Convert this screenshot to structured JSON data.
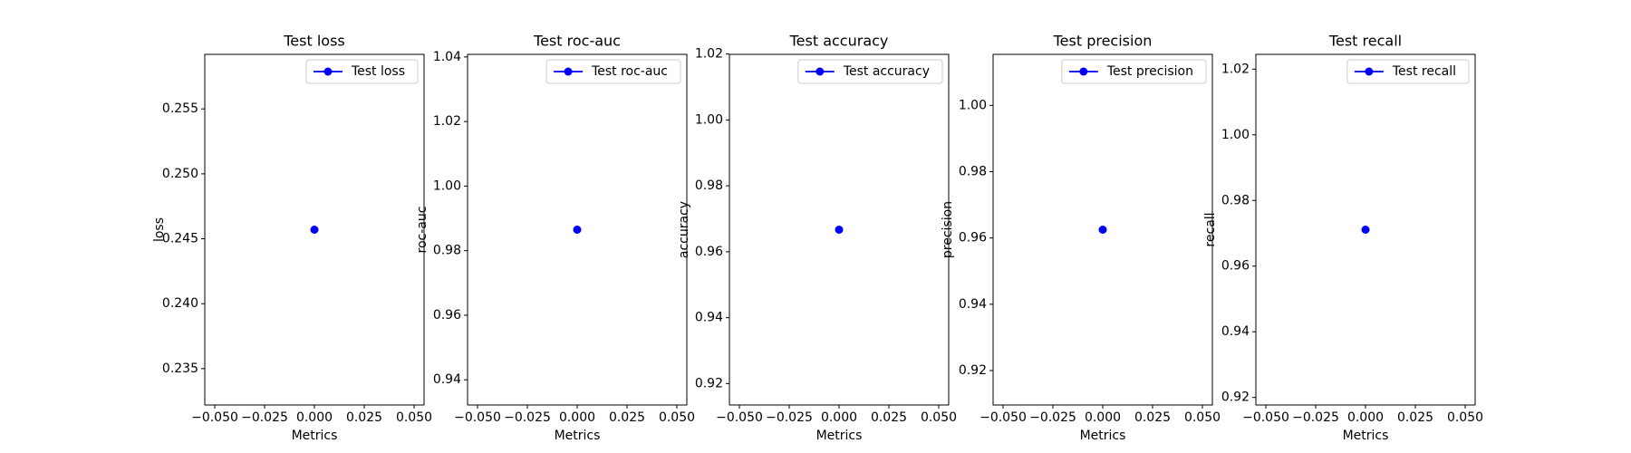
{
  "chart_data": [
    {
      "type": "line",
      "title": "Test loss",
      "xlabel": "Metrics",
      "ylabel": "loss",
      "x": [
        0
      ],
      "series": [
        {
          "name": "Test loss",
          "color": "#0000ff",
          "values": [
            0.2457
          ]
        }
      ],
      "xlim": [
        -0.055,
        0.055
      ],
      "xticks": [
        {
          "value": -0.05,
          "label": "−0.050"
        },
        {
          "value": -0.025,
          "label": "−0.025"
        },
        {
          "value": 0,
          "label": "0.000"
        },
        {
          "value": 0.025,
          "label": "0.025"
        },
        {
          "value": 0.05,
          "label": "0.050"
        }
      ],
      "ylim": [
        0.2322,
        0.2592
      ],
      "yticks": [
        0.235,
        {
          "value": 0.24,
          "label": "0.240"
        },
        0.245,
        {
          "value": 0.25,
          "label": "0.250"
        },
        0.255
      ],
      "legend": "upper right"
    },
    {
      "type": "line",
      "title": "Test roc-auc",
      "xlabel": "Metrics",
      "ylabel": "roc-auc",
      "x": [
        0
      ],
      "series": [
        {
          "name": "Test roc-auc",
          "color": "#0000ff",
          "values": [
            0.9865
          ]
        }
      ],
      "xlim": [
        -0.055,
        0.055
      ],
      "xticks": [
        {
          "value": -0.05,
          "label": "−0.050"
        },
        {
          "value": -0.025,
          "label": "−0.025"
        },
        {
          "value": 0,
          "label": "0.000"
        },
        {
          "value": 0.025,
          "label": "0.025"
        },
        {
          "value": 0.05,
          "label": "0.050"
        }
      ],
      "ylim": [
        0.9322,
        1.0408
      ],
      "yticks": [
        0.94,
        0.96,
        0.98,
        {
          "value": 1,
          "label": "1.00"
        },
        1.02,
        1.04
      ],
      "legend": "upper right"
    },
    {
      "type": "line",
      "title": "Test accuracy",
      "xlabel": "Metrics",
      "ylabel": "accuracy",
      "x": [
        0
      ],
      "series": [
        {
          "name": "Test accuracy",
          "color": "#0000ff",
          "values": [
            0.9667
          ]
        }
      ],
      "xlim": [
        -0.055,
        0.055
      ],
      "xticks": [
        {
          "value": -0.05,
          "label": "−0.050"
        },
        {
          "value": -0.025,
          "label": "−0.025"
        },
        {
          "value": 0,
          "label": "0.000"
        },
        {
          "value": 0.025,
          "label": "0.025"
        },
        {
          "value": 0.05,
          "label": "0.050"
        }
      ],
      "ylim": [
        0.9135,
        1.0199
      ],
      "yticks": [
        0.92,
        0.94,
        0.96,
        0.98,
        {
          "value": 1,
          "label": "1.00"
        },
        1.02
      ],
      "legend": "upper right"
    },
    {
      "type": "line",
      "title": "Test precision",
      "xlabel": "Metrics",
      "ylabel": "precision",
      "x": [
        0
      ],
      "series": [
        {
          "name": "Test precision",
          "color": "#0000ff",
          "values": [
            0.9625
          ]
        }
      ],
      "xlim": [
        -0.055,
        0.055
      ],
      "xticks": [
        {
          "value": -0.05,
          "label": "−0.050"
        },
        {
          "value": -0.025,
          "label": "−0.025"
        },
        {
          "value": 0,
          "label": "0.000"
        },
        {
          "value": 0.025,
          "label": "0.025"
        },
        {
          "value": 0.05,
          "label": "0.050"
        }
      ],
      "ylim": [
        0.9096,
        1.0154
      ],
      "yticks": [
        0.92,
        0.94,
        0.96,
        0.98,
        {
          "value": 1,
          "label": "1.00"
        }
      ],
      "legend": "upper right"
    },
    {
      "type": "line",
      "title": "Test recall",
      "xlabel": "Metrics",
      "ylabel": "recall",
      "x": [
        0
      ],
      "series": [
        {
          "name": "Test recall",
          "color": "#0000ff",
          "values": [
            0.9711
          ]
        }
      ],
      "xlim": [
        -0.055,
        0.055
      ],
      "xticks": [
        {
          "value": -0.05,
          "label": "−0.050"
        },
        {
          "value": -0.025,
          "label": "−0.025"
        },
        {
          "value": 0,
          "label": "0.000"
        },
        {
          "value": 0.025,
          "label": "0.025"
        },
        {
          "value": 0.05,
          "label": "0.050"
        }
      ],
      "ylim": [
        0.9177,
        1.0245
      ],
      "yticks": [
        0.92,
        0.94,
        0.96,
        0.98,
        {
          "value": 1,
          "label": "1.00"
        },
        1.02
      ],
      "legend": "upper right"
    }
  ]
}
